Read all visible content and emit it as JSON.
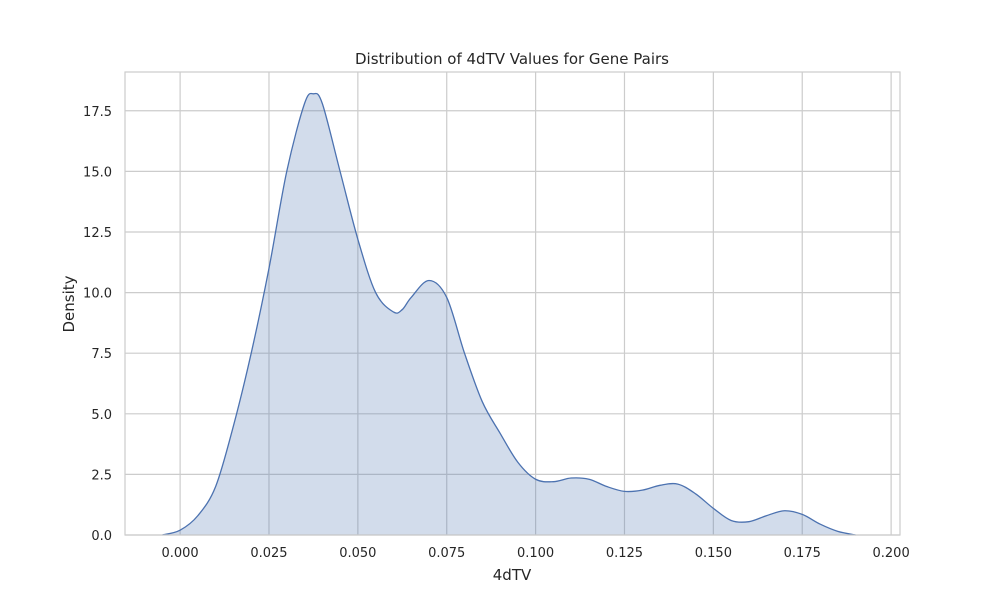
{
  "chart_data": {
    "type": "area",
    "title": "Distribution of 4dTV Values for Gene Pairs",
    "xlabel": "4dTV",
    "ylabel": "Density",
    "xlim": [
      -0.0155,
      0.2025
    ],
    "ylim": [
      0,
      19.1
    ],
    "xticks": [
      0.0,
      0.025,
      0.05,
      0.075,
      0.1,
      0.125,
      0.15,
      0.175,
      0.2
    ],
    "xtick_labels": [
      "0.000",
      "0.025",
      "0.050",
      "0.075",
      "0.100",
      "0.125",
      "0.150",
      "0.175",
      "0.200"
    ],
    "yticks": [
      0.0,
      2.5,
      5.0,
      7.5,
      10.0,
      12.5,
      15.0,
      17.5
    ],
    "ytick_labels": [
      "0.0",
      "2.5",
      "5.0",
      "7.5",
      "10.0",
      "12.5",
      "15.0",
      "17.5"
    ],
    "grid": true,
    "line_color": "#4c72b0",
    "fill_color": "#4c72b0",
    "fill_opacity": 0.25,
    "series": [
      {
        "x": [
          -0.005,
          0.0,
          0.005,
          0.01,
          0.015,
          0.02,
          0.025,
          0.03,
          0.035,
          0.0375,
          0.04,
          0.045,
          0.05,
          0.055,
          0.06,
          0.0625,
          0.065,
          0.07,
          0.075,
          0.08,
          0.085,
          0.09,
          0.095,
          0.1,
          0.105,
          0.11,
          0.115,
          0.12,
          0.125,
          0.13,
          0.135,
          0.14,
          0.145,
          0.15,
          0.155,
          0.16,
          0.165,
          0.17,
          0.175,
          0.18,
          0.185,
          0.19
        ],
        "y": [
          0.0,
          0.2,
          0.8,
          2.0,
          4.5,
          7.5,
          11.0,
          15.0,
          17.8,
          18.2,
          17.8,
          15.0,
          12.2,
          10.0,
          9.2,
          9.3,
          9.8,
          10.5,
          9.8,
          7.5,
          5.5,
          4.2,
          3.0,
          2.3,
          2.2,
          2.35,
          2.3,
          2.0,
          1.8,
          1.85,
          2.05,
          2.1,
          1.7,
          1.1,
          0.6,
          0.55,
          0.8,
          1.0,
          0.85,
          0.45,
          0.15,
          0.0
        ]
      }
    ]
  }
}
